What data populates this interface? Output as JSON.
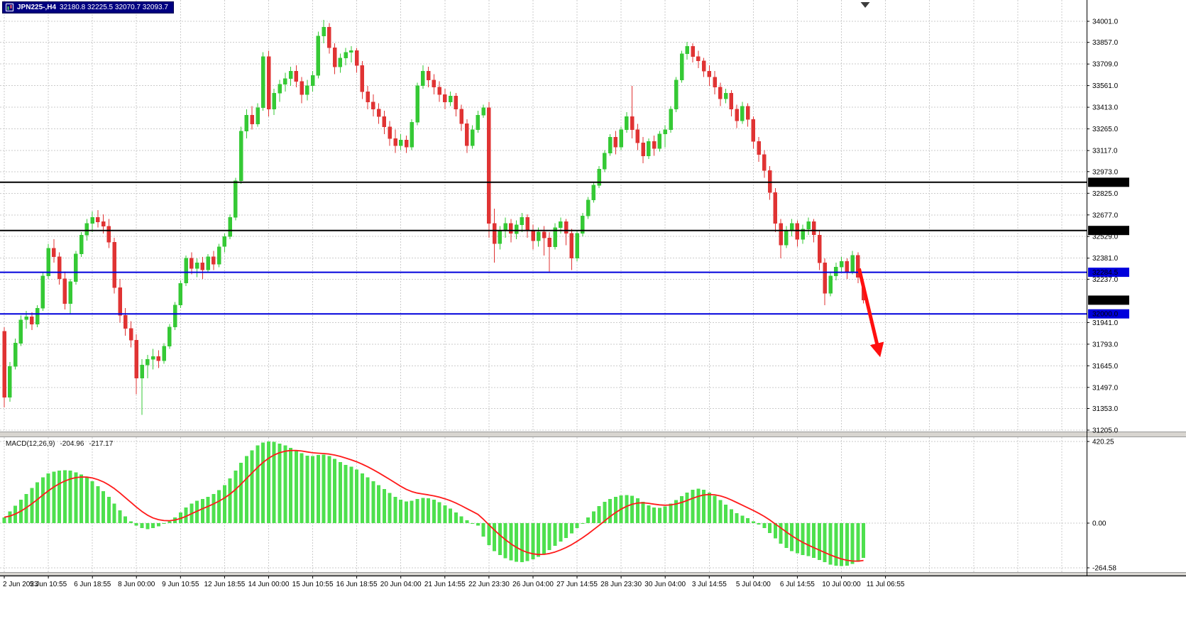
{
  "title": {
    "symbol_period": "JPN225-,H4",
    "ohlc": "32180.8 32225.5 32070.7 32093.7"
  },
  "chart_data": {
    "type": "candlestick",
    "symbol": "JPN225-",
    "timeframe": "H4",
    "colors": {
      "up": "#35c935",
      "down": "#e03333",
      "macd_histogram": "#4ee04e",
      "macd_signal": "#ff1a1a",
      "grid": "#cbcbcb",
      "background": "#ffffff",
      "axis_text": "#000000",
      "badge_text": "#ffffff",
      "black_line": "#000000",
      "blue_line": "#0000dc",
      "annotation": "#ff0f0f",
      "splitter": "#d8d5d0"
    },
    "y_axis_labels": [
      34001.0,
      33857.0,
      33709.0,
      33561.0,
      33413.0,
      33265.0,
      33117.0,
      32973.0,
      32825.0,
      32677.0,
      32529.0,
      32381.0,
      32237.0,
      31941.0,
      31793.0,
      31645.0,
      31497.0,
      31353.0,
      31205.0
    ],
    "x_labels": [
      {
        "label": "2 Jun 2023",
        "bar": 0
      },
      {
        "label": "5 Jun 10:55",
        "bar": 8
      },
      {
        "label": "6 Jun 18:55",
        "bar": 16
      },
      {
        "label": "8 Jun 00:00",
        "bar": 24
      },
      {
        "label": "9 Jun 10:55",
        "bar": 32
      },
      {
        "label": "12 Jun 18:55",
        "bar": 40
      },
      {
        "label": "14 Jun 00:00",
        "bar": 48
      },
      {
        "label": "15 Jun 10:55",
        "bar": 56
      },
      {
        "label": "16 Jun 18:55",
        "bar": 64
      },
      {
        "label": "20 Jun 04:00",
        "bar": 72
      },
      {
        "label": "21 Jun 14:55",
        "bar": 80
      },
      {
        "label": "22 Jun 23:30",
        "bar": 88
      },
      {
        "label": "26 Jun 04:00",
        "bar": 96
      },
      {
        "label": "27 Jun 14:55",
        "bar": 104
      },
      {
        "label": "28 Jun 23:30",
        "bar": 112
      },
      {
        "label": "30 Jun 04:00",
        "bar": 120
      },
      {
        "label": "3 Jul 14:55",
        "bar": 128
      },
      {
        "label": "5 Jul 04:00",
        "bar": 136
      },
      {
        "label": "6 Jul 14:55",
        "bar": 144
      },
      {
        "label": "10 Jul 00:00",
        "bar": 152
      },
      {
        "label": "11 Jul 06:55",
        "bar": 160
      }
    ],
    "price_lines": [
      {
        "value": 32900.0,
        "label": "32900.0",
        "color": "#000000"
      },
      {
        "value": 32570.7,
        "label": "32570.7",
        "color": "#000000"
      },
      {
        "value": 32284.5,
        "label": "32284.5",
        "color": "#0000dc"
      },
      {
        "value": 32000.0,
        "label": "32000.0",
        "color": "#0000dc"
      }
    ],
    "current_price": {
      "value": 32093.7,
      "label": "32093.7",
      "color": "#000000"
    },
    "annotation_arrow": {
      "from_bar": 155.2,
      "from_price": 32310,
      "to_bar": 158.9,
      "to_price": 31725,
      "color": "#ff0f0f"
    },
    "candles": [
      [
        31880,
        31910,
        31360,
        31430
      ],
      [
        31430,
        31670,
        31400,
        31640
      ],
      [
        31640,
        31830,
        31620,
        31800
      ],
      [
        31800,
        31990,
        31780,
        31960
      ],
      [
        31960,
        32020,
        31900,
        31980
      ],
      [
        31980,
        32010,
        31890,
        31930
      ],
      [
        31930,
        32060,
        31910,
        32040
      ],
      [
        32040,
        32280,
        32020,
        32260
      ],
      [
        32260,
        32480,
        32240,
        32450
      ],
      [
        32450,
        32510,
        32350,
        32390
      ],
      [
        32390,
        32420,
        32200,
        32240
      ],
      [
        32240,
        32290,
        32030,
        32070
      ],
      [
        32070,
        32240,
        32000,
        32220
      ],
      [
        32220,
        32430,
        32200,
        32410
      ],
      [
        32410,
        32560,
        32390,
        32540
      ],
      [
        32540,
        32650,
        32500,
        32620
      ],
      [
        32620,
        32700,
        32560,
        32660
      ],
      [
        32660,
        32710,
        32590,
        32630
      ],
      [
        32630,
        32680,
        32550,
        32600
      ],
      [
        32600,
        32650,
        32450,
        32490
      ],
      [
        32490,
        32520,
        32140,
        32180
      ],
      [
        32180,
        32240,
        31940,
        31990
      ],
      [
        31990,
        32040,
        31850,
        31900
      ],
      [
        31900,
        31950,
        31770,
        31820
      ],
      [
        31820,
        31860,
        31450,
        31560
      ],
      [
        31560,
        31690,
        31310,
        31650
      ],
      [
        31650,
        31720,
        31560,
        31690
      ],
      [
        31690,
        31760,
        31620,
        31710
      ],
      [
        31710,
        31750,
        31630,
        31680
      ],
      [
        31680,
        31800,
        31660,
        31780
      ],
      [
        31780,
        31930,
        31760,
        31910
      ],
      [
        31910,
        32080,
        31890,
        32060
      ],
      [
        32060,
        32230,
        32040,
        32210
      ],
      [
        32210,
        32400,
        32190,
        32380
      ],
      [
        32380,
        32420,
        32270,
        32310
      ],
      [
        32310,
        32380,
        32250,
        32350
      ],
      [
        32350,
        32390,
        32240,
        32300
      ],
      [
        32300,
        32410,
        32280,
        32390
      ],
      [
        32390,
        32430,
        32300,
        32340
      ],
      [
        32340,
        32480,
        32320,
        32460
      ],
      [
        32460,
        32550,
        32420,
        32530
      ],
      [
        32530,
        32680,
        32510,
        32660
      ],
      [
        32660,
        32930,
        32640,
        32910
      ],
      [
        32910,
        33280,
        32890,
        33250
      ],
      [
        33250,
        33400,
        33200,
        33360
      ],
      [
        33360,
        33420,
        33260,
        33300
      ],
      [
        33300,
        33440,
        33280,
        33410
      ],
      [
        33410,
        33790,
        33390,
        33760
      ],
      [
        33760,
        33800,
        33350,
        33400
      ],
      [
        33400,
        33540,
        33360,
        33510
      ],
      [
        33510,
        33600,
        33450,
        33570
      ],
      [
        33570,
        33650,
        33520,
        33610
      ],
      [
        33610,
        33690,
        33560,
        33660
      ],
      [
        33660,
        33700,
        33550,
        33590
      ],
      [
        33590,
        33620,
        33440,
        33500
      ],
      [
        33500,
        33600,
        33460,
        33560
      ],
      [
        33560,
        33660,
        33520,
        33630
      ],
      [
        33630,
        33930,
        33610,
        33900
      ],
      [
        33900,
        34010,
        33850,
        33960
      ],
      [
        33960,
        33990,
        33780,
        33820
      ],
      [
        33820,
        33850,
        33640,
        33690
      ],
      [
        33690,
        33780,
        33650,
        33750
      ],
      [
        33750,
        33820,
        33700,
        33790
      ],
      [
        33790,
        33830,
        33720,
        33800
      ],
      [
        33800,
        33820,
        33650,
        33700
      ],
      [
        33700,
        33730,
        33470,
        33520
      ],
      [
        33520,
        33560,
        33400,
        33450
      ],
      [
        33450,
        33500,
        33350,
        33400
      ],
      [
        33400,
        33440,
        33300,
        33350
      ],
      [
        33350,
        33390,
        33230,
        33280
      ],
      [
        33280,
        33320,
        33150,
        33200
      ],
      [
        33200,
        33260,
        33100,
        33150
      ],
      [
        33150,
        33230,
        33120,
        33190
      ],
      [
        33190,
        33220,
        33100,
        33140
      ],
      [
        33140,
        33330,
        33120,
        33310
      ],
      [
        33310,
        33580,
        33290,
        33560
      ],
      [
        33560,
        33700,
        33540,
        33660
      ],
      [
        33660,
        33690,
        33550,
        33600
      ],
      [
        33600,
        33640,
        33500,
        33550
      ],
      [
        33550,
        33590,
        33450,
        33500
      ],
      [
        33500,
        33540,
        33400,
        33450
      ],
      [
        33450,
        33520,
        33420,
        33490
      ],
      [
        33490,
        33510,
        33350,
        33400
      ],
      [
        33400,
        33430,
        33250,
        33300
      ],
      [
        33300,
        33330,
        33100,
        33150
      ],
      [
        33150,
        33290,
        33130,
        33260
      ],
      [
        33260,
        33390,
        33240,
        33360
      ],
      [
        33360,
        33430,
        33340,
        33410
      ],
      [
        33410,
        33450,
        32520,
        32620
      ],
      [
        32620,
        32720,
        32350,
        32480
      ],
      [
        32480,
        32600,
        32440,
        32570
      ],
      [
        32570,
        32660,
        32520,
        32620
      ],
      [
        32620,
        32650,
        32490,
        32550
      ],
      [
        32550,
        32640,
        32510,
        32610
      ],
      [
        32610,
        32690,
        32560,
        32660
      ],
      [
        32660,
        32680,
        32520,
        32570
      ],
      [
        32570,
        32610,
        32440,
        32500
      ],
      [
        32500,
        32590,
        32460,
        32560
      ],
      [
        32560,
        32600,
        32400,
        32520
      ],
      [
        32520,
        32560,
        32290,
        32460
      ],
      [
        32460,
        32620,
        32440,
        32590
      ],
      [
        32590,
        32660,
        32550,
        32630
      ],
      [
        32630,
        32650,
        32470,
        32550
      ],
      [
        32550,
        32580,
        32300,
        32380
      ],
      [
        32380,
        32570,
        32360,
        32550
      ],
      [
        32550,
        32690,
        32530,
        32670
      ],
      [
        32670,
        32800,
        32650,
        32780
      ],
      [
        32780,
        32900,
        32760,
        32880
      ],
      [
        32880,
        33010,
        32860,
        32990
      ],
      [
        32990,
        33120,
        32970,
        33100
      ],
      [
        33100,
        33230,
        33080,
        33210
      ],
      [
        33210,
        33250,
        33090,
        33140
      ],
      [
        33140,
        33280,
        33120,
        33260
      ],
      [
        33260,
        33380,
        33240,
        33350
      ],
      [
        33350,
        33560,
        33200,
        33260
      ],
      [
        33260,
        33300,
        33120,
        33170
      ],
      [
        33170,
        33210,
        33030,
        33080
      ],
      [
        33080,
        33200,
        33060,
        33180
      ],
      [
        33180,
        33220,
        33080,
        33130
      ],
      [
        33130,
        33250,
        33110,
        33230
      ],
      [
        33230,
        33290,
        33140,
        33260
      ],
      [
        33260,
        33420,
        33240,
        33400
      ],
      [
        33400,
        33620,
        33380,
        33600
      ],
      [
        33600,
        33800,
        33580,
        33780
      ],
      [
        33780,
        33860,
        33740,
        33830
      ],
      [
        33830,
        33850,
        33720,
        33760
      ],
      [
        33760,
        33800,
        33680,
        33730
      ],
      [
        33730,
        33750,
        33620,
        33660
      ],
      [
        33660,
        33700,
        33560,
        33620
      ],
      [
        33620,
        33660,
        33500,
        33550
      ],
      [
        33550,
        33580,
        33420,
        33470
      ],
      [
        33470,
        33540,
        33440,
        33510
      ],
      [
        33510,
        33530,
        33350,
        33400
      ],
      [
        33400,
        33430,
        33270,
        33320
      ],
      [
        33320,
        33450,
        33300,
        33420
      ],
      [
        33420,
        33440,
        33280,
        33330
      ],
      [
        33330,
        33350,
        33130,
        33180
      ],
      [
        33180,
        33210,
        33040,
        33090
      ],
      [
        33090,
        33120,
        32930,
        32980
      ],
      [
        32980,
        33010,
        32780,
        32830
      ],
      [
        32830,
        32860,
        32560,
        32620
      ],
      [
        32620,
        32650,
        32380,
        32470
      ],
      [
        32470,
        32600,
        32450,
        32570
      ],
      [
        32570,
        32650,
        32530,
        32620
      ],
      [
        32620,
        32640,
        32460,
        32510
      ],
      [
        32510,
        32610,
        32480,
        32580
      ],
      [
        32580,
        32660,
        32540,
        32630
      ],
      [
        32630,
        32650,
        32490,
        32540
      ],
      [
        32540,
        32570,
        32300,
        32350
      ],
      [
        32350,
        32380,
        32060,
        32140
      ],
      [
        32140,
        32290,
        32120,
        32260
      ],
      [
        32260,
        32350,
        32230,
        32320
      ],
      [
        32320,
        32390,
        32280,
        32360
      ],
      [
        32360,
        32380,
        32240,
        32290
      ],
      [
        32290,
        32430,
        32270,
        32400
      ],
      [
        32400,
        32420,
        32210,
        32250
      ],
      [
        32180.8,
        32225.5,
        32070.7,
        32093.7
      ]
    ],
    "macd": {
      "label": "MACD(12,26,9)",
      "main_value": "-204.96",
      "signal_value": "-217.17",
      "axis_labels": [
        "420.25",
        "0.00",
        "-264.58"
      ],
      "signal_period": 9,
      "histogram": [
        30,
        60,
        90,
        120,
        150,
        180,
        210,
        235,
        255,
        265,
        270,
        272,
        270,
        262,
        250,
        235,
        215,
        190,
        165,
        135,
        100,
        65,
        35,
        10,
        -15,
        -30,
        -35,
        -30,
        -18,
        -5,
        10,
        30,
        55,
        80,
        100,
        115,
        125,
        135,
        150,
        170,
        195,
        230,
        270,
        310,
        345,
        375,
        400,
        415,
        420,
        418,
        410,
        400,
        388,
        375,
        360,
        348,
        345,
        350,
        352,
        345,
        330,
        315,
        300,
        290,
        275,
        255,
        235,
        215,
        195,
        175,
        155,
        135,
        120,
        112,
        115,
        125,
        130,
        128,
        120,
        108,
        92,
        75,
        55,
        35,
        15,
        0,
        -15,
        -80,
        -130,
        -165,
        -190,
        -208,
        -220,
        -228,
        -230,
        -225,
        -215,
        -200,
        -182,
        -160,
        -135,
        -110,
        -88,
        -60,
        -30,
        0,
        30,
        60,
        88,
        110,
        125,
        135,
        142,
        145,
        140,
        128,
        110,
        92,
        80,
        78,
        85,
        100,
        118,
        138,
        158,
        172,
        178,
        172,
        158,
        140,
        118,
        95,
        72,
        52,
        38,
        25,
        10,
        -8,
        -30,
        -58,
        -90,
        -122,
        -148,
        -165,
        -178,
        -188,
        -196,
        -205,
        -218,
        -232,
        -245,
        -252,
        -255,
        -252,
        -242,
        -228,
        -205
      ]
    }
  }
}
